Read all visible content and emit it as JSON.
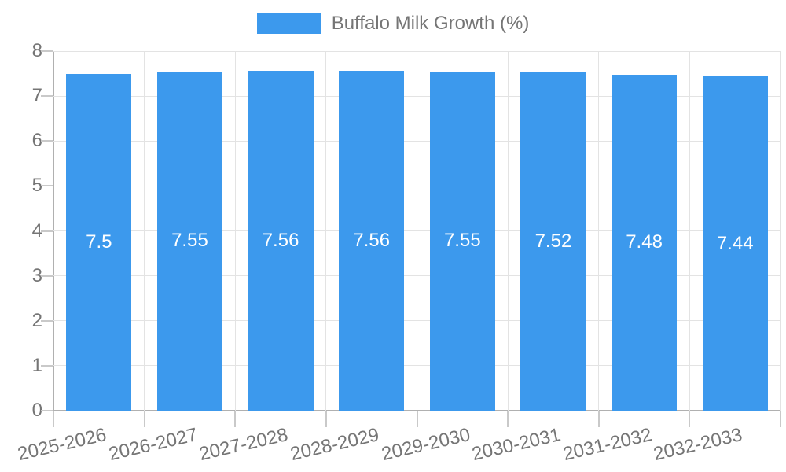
{
  "legend": {
    "label": "Buffalo Milk Growth (%)"
  },
  "chart_data": {
    "type": "bar",
    "title": "",
    "legend_position": "top",
    "categories": [
      "2025-2026",
      "2026-2027",
      "2027-2028",
      "2028-2029",
      "2029-2030",
      "2030-2031",
      "2031-2032",
      "2032-2033"
    ],
    "series": [
      {
        "name": "Buffalo Milk Growth (%)",
        "values": [
          7.5,
          7.55,
          7.56,
          7.56,
          7.55,
          7.52,
          7.48,
          7.44
        ]
      }
    ],
    "value_labels": [
      "7.5",
      "7.55",
      "7.56",
      "7.56",
      "7.55",
      "7.52",
      "7.48",
      "7.44"
    ],
    "xlabel": "",
    "ylabel": "",
    "ylim": [
      0,
      8
    ],
    "yticks": [
      0,
      1,
      2,
      3,
      4,
      5,
      6,
      7,
      8
    ],
    "grid": true,
    "colors": {
      "bar": "#3C99ED",
      "grid": "#e3e3e3",
      "axis": "#b0b0b0",
      "tick": "#c9c9c9",
      "tick_text": "#757575",
      "value_label": "#ffffff"
    }
  }
}
